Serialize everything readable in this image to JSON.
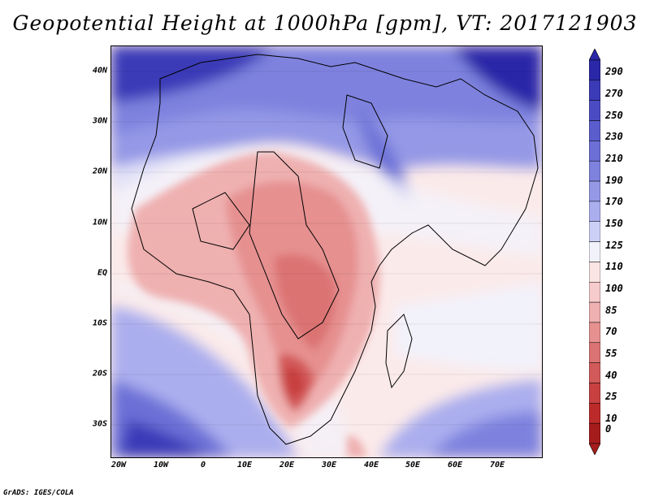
{
  "title": "Geopotential Height at 1000hPa [gpm], VT: 2017121903",
  "credit": "GrADS: IGES/COLA",
  "x_axis": {
    "labels": [
      "20W",
      "10W",
      "0",
      "10E",
      "20E",
      "30E",
      "40E",
      "50E",
      "60E",
      "70E"
    ],
    "lon_values": [
      -20,
      -10,
      0,
      10,
      20,
      30,
      40,
      50,
      60,
      70
    ],
    "range": [
      -22,
      80
    ]
  },
  "y_axis": {
    "labels": [
      "40N",
      "30N",
      "20N",
      "10N",
      "EQ",
      "10S",
      "20S",
      "30S"
    ],
    "lat_values": [
      40,
      30,
      20,
      10,
      0,
      -10,
      -20,
      -30
    ],
    "range": [
      -36,
      45
    ]
  },
  "colorbar": {
    "levels": [
      "290",
      "270",
      "250",
      "230",
      "210",
      "190",
      "170",
      "150",
      "125",
      "110",
      "100",
      "85",
      "70",
      "55",
      "40",
      "25",
      "10",
      "0"
    ],
    "colors": [
      "#2a27a8",
      "#3b3bb8",
      "#4b4cc4",
      "#5a5dcc",
      "#6c6fd6",
      "#7e82de",
      "#9498e6",
      "#abaeee",
      "#cdd0f6",
      "#f2f2fb",
      "#fbe4e4",
      "#f6cbcb",
      "#efb0b0",
      "#e69090",
      "#dc7373",
      "#d35a5a",
      "#c84040",
      "#bd2a2a",
      "#a61c1c"
    ]
  }
}
